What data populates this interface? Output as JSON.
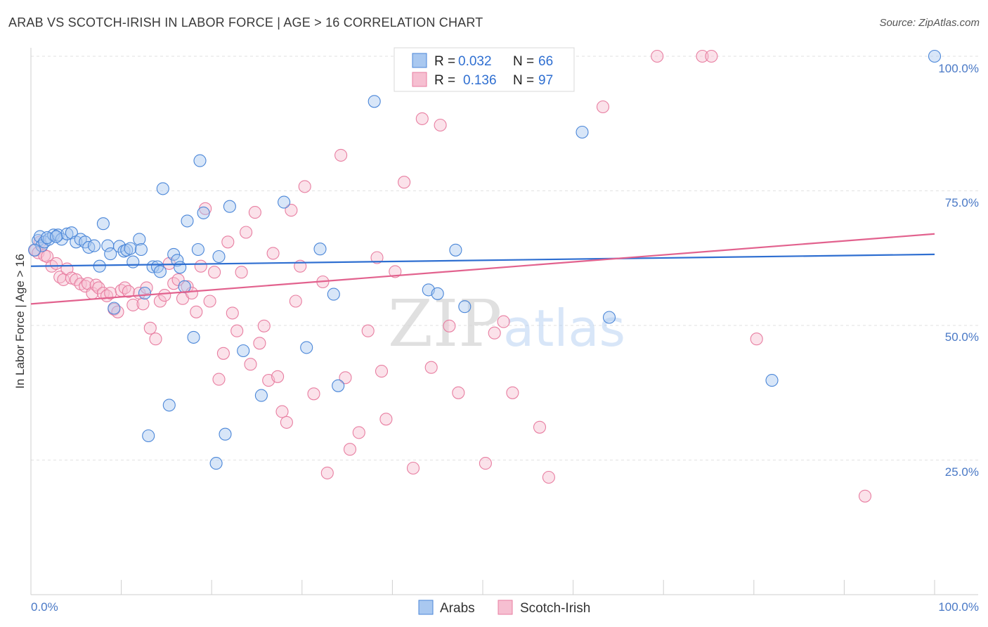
{
  "header": {
    "title": "ARAB VS SCOTCH-IRISH IN LABOR FORCE | AGE > 16 CORRELATION CHART",
    "source": "Source: ZipAtlas.com"
  },
  "legend": {
    "arabs": {
      "r_label": "R =",
      "r_value": "0.032",
      "n_label": "N =",
      "n_value": "66"
    },
    "scotch": {
      "r_label": "R =",
      "r_value": "0.136",
      "n_label": "N =",
      "n_value": "97"
    }
  },
  "watermark": {
    "zip": "ZIP",
    "atlas": "atlas"
  },
  "chart_data": {
    "type": "scatter",
    "title": "ARAB VS SCOTCH-IRISH IN LABOR FORCE | AGE > 16 CORRELATION CHART",
    "ylabel": "In Labor Force | Age > 16",
    "xlabel": "",
    "x_ticks": [
      "0.0%",
      "100.0%"
    ],
    "y_ticks": [
      "25.0%",
      "50.0%",
      "75.0%",
      "100.0%"
    ],
    "xlim": [
      0,
      100
    ],
    "ylim": [
      0,
      100
    ],
    "grid": true,
    "legend_position": "top-center",
    "colors": {
      "arabs_fill": "#a9c8f0",
      "arabs_stroke": "#4a86d8",
      "arabs_line": "#2f6fd1",
      "scotch_fill": "#f6bfd1",
      "scotch_stroke": "#e87ea1",
      "scotch_line": "#e2628e"
    },
    "series": [
      {
        "name": "Arabs",
        "trend": [
          [
            0,
            61.0
          ],
          [
            100,
            63.2
          ]
        ],
        "points": [
          [
            0.8,
            65.8
          ],
          [
            1.0,
            66.5
          ],
          [
            1.2,
            64.8
          ],
          [
            1.5,
            65.5
          ],
          [
            2.0,
            66.0
          ],
          [
            2.5,
            66.8
          ],
          [
            3.0,
            66.8
          ],
          [
            3.4,
            66.0
          ],
          [
            4.0,
            67.0
          ],
          [
            4.5,
            67.2
          ],
          [
            5.0,
            65.5
          ],
          [
            5.5,
            66.0
          ],
          [
            6.0,
            65.5
          ],
          [
            6.4,
            64.5
          ],
          [
            7.0,
            64.8
          ],
          [
            7.6,
            61.0
          ],
          [
            8.0,
            68.9
          ],
          [
            8.5,
            64.8
          ],
          [
            8.8,
            63.3
          ],
          [
            9.2,
            53.2
          ],
          [
            9.8,
            64.7
          ],
          [
            10.3,
            63.8
          ],
          [
            10.6,
            64.0
          ],
          [
            11.0,
            64.3
          ],
          [
            11.3,
            61.8
          ],
          [
            12.0,
            66.0
          ],
          [
            12.2,
            64.1
          ],
          [
            12.6,
            56.0
          ],
          [
            13.0,
            29.5
          ],
          [
            13.5,
            60.9
          ],
          [
            14.0,
            60.9
          ],
          [
            14.3,
            60.0
          ],
          [
            14.6,
            75.4
          ],
          [
            15.3,
            35.2
          ],
          [
            15.8,
            63.2
          ],
          [
            16.2,
            62.1
          ],
          [
            16.5,
            60.8
          ],
          [
            17.0,
            57.2
          ],
          [
            17.3,
            69.4
          ],
          [
            18.0,
            47.8
          ],
          [
            18.5,
            64.1
          ],
          [
            18.7,
            80.6
          ],
          [
            19.1,
            70.9
          ],
          [
            20.5,
            24.4
          ],
          [
            20.8,
            62.8
          ],
          [
            21.5,
            29.8
          ],
          [
            22.0,
            72.1
          ],
          [
            23.5,
            45.3
          ],
          [
            25.5,
            37.0
          ],
          [
            28.0,
            72.9
          ],
          [
            30.5,
            45.9
          ],
          [
            32.0,
            64.2
          ],
          [
            33.5,
            55.8
          ],
          [
            34.0,
            38.8
          ],
          [
            38.0,
            91.6
          ],
          [
            44.0,
            56.6
          ],
          [
            45.0,
            55.9
          ],
          [
            47.0,
            64.0
          ],
          [
            48.0,
            53.5
          ],
          [
            61.0,
            85.9
          ],
          [
            64.0,
            51.5
          ],
          [
            82.0,
            39.8
          ],
          [
            100.0,
            100.0
          ],
          [
            0.4,
            64.0
          ],
          [
            1.8,
            66.3
          ],
          [
            2.8,
            66.5
          ]
        ]
      },
      {
        "name": "Scotch-Irish",
        "trend": [
          [
            0,
            54.0
          ],
          [
            100,
            67.0
          ]
        ],
        "points": [
          [
            0.5,
            64.0
          ],
          [
            0.8,
            63.5
          ],
          [
            1.0,
            65.5
          ],
          [
            1.2,
            64.8
          ],
          [
            1.5,
            63.0
          ],
          [
            1.8,
            62.8
          ],
          [
            2.3,
            61.0
          ],
          [
            2.8,
            61.5
          ],
          [
            3.2,
            59.0
          ],
          [
            3.6,
            58.5
          ],
          [
            4.0,
            60.5
          ],
          [
            4.5,
            58.8
          ],
          [
            5.0,
            58.5
          ],
          [
            5.5,
            57.7
          ],
          [
            6.0,
            57.3
          ],
          [
            6.3,
            57.8
          ],
          [
            6.8,
            56.0
          ],
          [
            7.2,
            57.5
          ],
          [
            7.5,
            57.0
          ],
          [
            8.0,
            56.0
          ],
          [
            8.4,
            55.5
          ],
          [
            8.8,
            56.0
          ],
          [
            9.2,
            53.0
          ],
          [
            9.6,
            52.5
          ],
          [
            10.0,
            56.5
          ],
          [
            10.4,
            57.0
          ],
          [
            10.8,
            56.3
          ],
          [
            11.3,
            53.8
          ],
          [
            12.0,
            56.0
          ],
          [
            12.4,
            54.0
          ],
          [
            12.8,
            57.0
          ],
          [
            13.2,
            49.5
          ],
          [
            13.8,
            47.5
          ],
          [
            14.3,
            54.5
          ],
          [
            14.8,
            55.6
          ],
          [
            15.3,
            61.5
          ],
          [
            15.8,
            57.8
          ],
          [
            16.3,
            58.5
          ],
          [
            16.8,
            55.0
          ],
          [
            17.3,
            57.2
          ],
          [
            17.8,
            56.0
          ],
          [
            18.3,
            52.5
          ],
          [
            18.8,
            61.0
          ],
          [
            19.3,
            71.7
          ],
          [
            19.8,
            54.5
          ],
          [
            20.3,
            59.9
          ],
          [
            20.8,
            40.0
          ],
          [
            21.3,
            44.8
          ],
          [
            21.8,
            65.5
          ],
          [
            22.3,
            52.3
          ],
          [
            22.8,
            49.0
          ],
          [
            23.3,
            59.9
          ],
          [
            23.8,
            67.3
          ],
          [
            24.3,
            42.8
          ],
          [
            24.8,
            71.0
          ],
          [
            25.3,
            46.7
          ],
          [
            25.8,
            49.9
          ],
          [
            26.3,
            39.8
          ],
          [
            26.8,
            63.4
          ],
          [
            27.3,
            40.5
          ],
          [
            27.8,
            34.0
          ],
          [
            28.3,
            32.0
          ],
          [
            28.8,
            71.4
          ],
          [
            29.3,
            54.5
          ],
          [
            29.8,
            61.0
          ],
          [
            30.3,
            75.8
          ],
          [
            31.3,
            37.3
          ],
          [
            32.3,
            58.1
          ],
          [
            32.8,
            22.6
          ],
          [
            34.3,
            81.6
          ],
          [
            34.8,
            40.3
          ],
          [
            35.3,
            27.0
          ],
          [
            36.3,
            30.1
          ],
          [
            37.3,
            49.0
          ],
          [
            38.3,
            62.6
          ],
          [
            38.8,
            41.5
          ],
          [
            39.3,
            32.6
          ],
          [
            40.3,
            60.0
          ],
          [
            41.3,
            76.6
          ],
          [
            42.3,
            23.5
          ],
          [
            43.3,
            88.4
          ],
          [
            44.3,
            42.2
          ],
          [
            45.3,
            87.2
          ],
          [
            46.3,
            49.9
          ],
          [
            47.3,
            37.5
          ],
          [
            50.3,
            24.4
          ],
          [
            51.3,
            48.6
          ],
          [
            52.3,
            50.7
          ],
          [
            53.3,
            37.5
          ],
          [
            56.3,
            31.1
          ],
          [
            57.3,
            21.8
          ],
          [
            63.3,
            90.6
          ],
          [
            69.3,
            100.0
          ],
          [
            74.3,
            100.0
          ],
          [
            75.3,
            100.0
          ],
          [
            80.3,
            47.5
          ],
          [
            92.3,
            18.3
          ]
        ]
      }
    ]
  }
}
